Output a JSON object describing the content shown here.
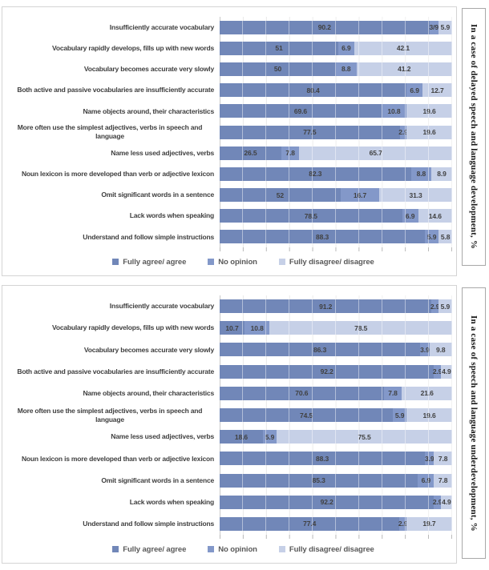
{
  "colors": {
    "series": [
      "#7187b8",
      "#8398c9",
      "#c6d0e7"
    ],
    "value_label": "#404040",
    "category_label": "#404040",
    "legend_text": "#595959",
    "gridline": "#e7e7e7",
    "axis": "#b9b9b9",
    "chart_border": "#d4d4d4",
    "panel_border": "#a8a8a8"
  },
  "legend": [
    "Fully agree/ agree",
    "No opinion",
    "Fully disagree/ disagree"
  ],
  "chart_data": [
    {
      "type": "bar",
      "orientation": "horizontal",
      "stacked": true,
      "title": "In a case of delayed speech and language development, %",
      "title_position": "right-vertical",
      "xlim": [
        0,
        100
      ],
      "gridlines": true,
      "legend_position": "bottom",
      "categories": [
        "Insufficiently accurate vocabulary",
        "Vocabulary rapidly develops, fills up with new words",
        "Vocabulary becomes accurate very slowly",
        "Both active and passive vocabularies are insufficiently accurate",
        "Name objects around, their characteristics",
        "More often use the simplest adjectives, verbs in speech and language",
        "Name less used adjectives, verbs",
        "Noun lexicon is more developed than verb or adjective lexicon",
        "Omit significant words in a sentence",
        "Lack words when speaking",
        "Understand and follow simple instructions"
      ],
      "series": [
        {
          "name": "Fully agree/ agree",
          "values": [
            90.2,
            51,
            50,
            80.4,
            69.6,
            77.5,
            26.5,
            82.3,
            52,
            78.5,
            88.3
          ],
          "labels": [
            "90.2",
            "51",
            "50",
            "80.4",
            "69.6",
            "77.5",
            "26.5",
            "82.3",
            "52",
            "78.5",
            "88.3"
          ]
        },
        {
          "name": "No opinion",
          "values": [
            3.9,
            6.9,
            8.8,
            6.9,
            10.8,
            2.9,
            7.8,
            8.8,
            16.7,
            6.9,
            5.9
          ],
          "labels": [
            "3/9",
            "6.9",
            "8.8",
            "6.9",
            "10.8",
            "2.9",
            "7.8",
            "8.8",
            "16.7",
            "6.9",
            "5.9"
          ]
        },
        {
          "name": "Fully disagree/ disagree",
          "values": [
            5.9,
            42.1,
            41.2,
            12.7,
            19.6,
            19.6,
            65.7,
            8.9,
            31.3,
            14.6,
            5.8
          ],
          "labels": [
            "5.9",
            "42.1",
            "41.2",
            "12.7",
            "19.6",
            "19.6",
            "65.7",
            "8.9",
            "31.3",
            "14.6",
            "5.8"
          ]
        }
      ]
    },
    {
      "type": "bar",
      "orientation": "horizontal",
      "stacked": true,
      "title": "In a case of speech and language underdevelopment, %",
      "title_position": "right-vertical",
      "xlim": [
        0,
        100
      ],
      "gridlines": true,
      "legend_position": "bottom",
      "categories": [
        "Insufficiently accurate vocabulary",
        "Vocabulary rapidly develops, fills up with new words",
        "Vocabulary becomes accurate very slowly",
        "Both active and passive vocabularies are insufficiently accurate",
        "Name objects around, their characteristics",
        "More often use the simplest adjectives, verbs in speech and language",
        "Name less used adjectives, verbs",
        "Noun lexicon is more developed than verb or adjective lexicon",
        "Omit significant words in a sentence",
        "Lack words when speaking",
        "Understand and follow simple instructions"
      ],
      "series": [
        {
          "name": "Fully agree/ agree",
          "values": [
            91.2,
            10.7,
            86.3,
            92.2,
            70.6,
            74.5,
            18.6,
            88.3,
            85.3,
            92.2,
            77.4
          ],
          "labels": [
            "91.2",
            "10.7",
            "86.3",
            "92.2",
            "70.6",
            "74.5",
            "18.6",
            "88.3",
            "85.3",
            "92.2",
            "77.4"
          ]
        },
        {
          "name": "No opinion",
          "values": [
            2.9,
            10.8,
            3.9,
            2.9,
            7.8,
            5.9,
            5.9,
            3.9,
            6.9,
            2.9,
            2.9
          ],
          "labels": [
            "2.9",
            "10.8",
            "3.9",
            "2.9",
            "7.8",
            "5.9",
            "5.9",
            "3.9",
            "6.9",
            "2.9",
            "2.9"
          ]
        },
        {
          "name": "Fully disagree/ disagree",
          "values": [
            5.9,
            78.5,
            9.8,
            4.9,
            21.6,
            19.6,
            75.5,
            7.8,
            7.8,
            4.9,
            19.7
          ],
          "labels": [
            "5.9",
            "78.5",
            "9.8",
            "4.9",
            "21.6",
            "19.6",
            "75.5",
            "7.8",
            "7.8",
            "4.9",
            "19.7"
          ]
        }
      ]
    }
  ]
}
